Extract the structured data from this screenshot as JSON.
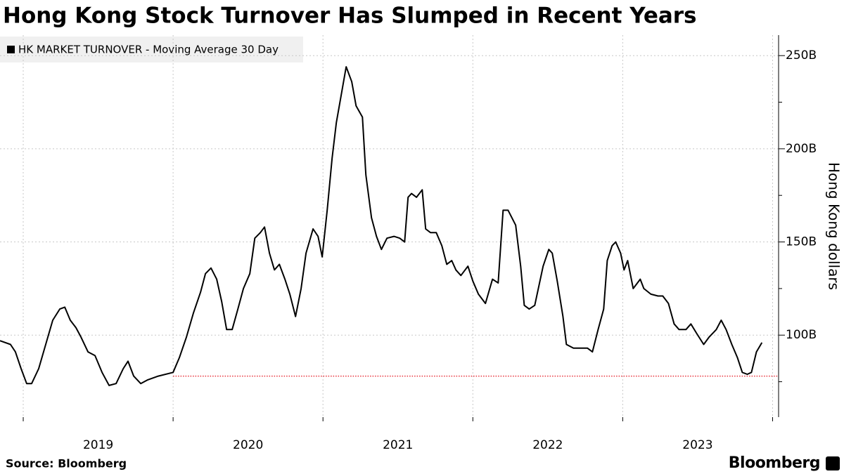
{
  "chart_data": {
    "type": "line",
    "title": "Hong Kong Stock Turnover Has Slumped in Recent Years",
    "y_axis_label": "Hong Kong dollars",
    "source": "Source: Bloomberg",
    "brand": "Bloomberg",
    "series": [
      {
        "name": "HK MARKET TURNOVER - Moving Average 30 Day",
        "color": "#000000",
        "x": [
          2018.845,
          2018.915,
          2018.948,
          2018.986,
          2019.023,
          2019.056,
          2019.103,
          2019.15,
          2019.197,
          2019.244,
          2019.277,
          2019.314,
          2019.352,
          2019.385,
          2019.432,
          2019.479,
          2019.526,
          2019.573,
          2019.62,
          2019.667,
          2019.699,
          2019.737,
          2019.784,
          2019.831,
          2019.901,
          2020.0,
          2020.042,
          2020.089,
          2020.136,
          2020.183,
          2020.216,
          2020.253,
          2020.291,
          2020.324,
          2020.357,
          2020.394,
          2020.432,
          2020.469,
          2020.512,
          2020.545,
          2020.582,
          2020.61,
          2020.643,
          2020.676,
          2020.709,
          2020.746,
          2020.779,
          2020.817,
          2020.854,
          2020.887,
          2020.934,
          2020.967,
          2020.995,
          2021.028,
          2021.061,
          2021.089,
          2021.122,
          2021.155,
          2021.192,
          2021.221,
          2021.263,
          2021.286,
          2021.324,
          2021.357,
          2021.39,
          2021.427,
          2021.474,
          2021.512,
          2021.545,
          2021.568,
          2021.591,
          2021.624,
          2021.662,
          2021.685,
          2021.718,
          2021.756,
          2021.793,
          2021.826,
          2021.859,
          2021.887,
          2021.92,
          2021.967,
          2022.0,
          2022.037,
          2022.084,
          2022.131,
          2022.169,
          2022.202,
          2022.235,
          2022.286,
          2022.319,
          2022.343,
          2022.376,
          2022.413,
          2022.437,
          2022.469,
          2022.507,
          2022.53,
          2022.563,
          2022.601,
          2022.624,
          2022.671,
          2022.718,
          2022.765,
          2022.798,
          2022.836,
          2022.873,
          2022.897,
          2022.929,
          2022.953,
          2022.986,
          2023.009,
          2023.033,
          2023.07,
          2023.117,
          2023.141,
          2023.188,
          2023.235,
          2023.267,
          2023.305,
          2023.343,
          2023.376,
          2023.422,
          2023.455,
          2023.493,
          2023.54,
          2023.577,
          2023.624,
          2023.657,
          2023.69,
          2023.728,
          2023.765,
          2023.798,
          2023.831,
          2023.859,
          2023.892,
          2023.929
        ],
        "values": [
          97,
          95,
          91,
          82,
          74,
          74,
          82,
          95,
          108,
          114,
          115,
          108,
          104,
          99,
          91,
          89,
          80,
          73,
          74,
          82,
          86,
          78,
          74,
          76,
          78,
          80,
          88,
          99,
          112,
          123,
          133,
          136,
          130,
          118,
          103,
          103,
          114,
          125,
          133,
          152,
          155,
          158,
          144,
          135,
          138,
          130,
          122,
          110,
          125,
          144,
          157,
          153,
          142,
          167,
          195,
          214,
          229,
          244,
          236,
          223,
          217,
          186,
          163,
          153,
          146,
          152,
          153,
          152,
          150,
          174,
          176,
          174,
          178,
          157,
          155,
          155,
          148,
          138,
          140,
          135,
          132,
          137,
          129,
          122,
          117,
          130,
          128,
          167,
          167,
          159,
          137,
          116,
          114,
          116,
          125,
          137,
          146,
          144,
          129,
          110,
          95,
          93,
          93,
          93,
          91,
          103,
          114,
          140,
          148,
          150,
          144,
          135,
          140,
          125,
          130,
          125,
          122,
          121,
          121,
          117,
          106,
          103,
          103,
          106,
          101,
          95,
          99,
          103,
          108,
          103,
          95,
          88,
          80,
          79,
          80,
          91,
          96
        ]
      }
    ],
    "reference_line": {
      "value": 78,
      "x_start": 2020,
      "color": "#e8303a"
    },
    "xlim": [
      2018.845,
      2024.04
    ],
    "xticks": [
      2019,
      2020,
      2021,
      2022,
      2023,
      2024
    ],
    "xlabels": [
      {
        "value": 2019.5,
        "label": "2019"
      },
      {
        "value": 2020.5,
        "label": "2020"
      },
      {
        "value": 2021.5,
        "label": "2021"
      },
      {
        "value": 2022.5,
        "label": "2022"
      },
      {
        "value": 2023.5,
        "label": "2023"
      }
    ],
    "ylim": [
      56,
      261
    ],
    "yticks": [
      {
        "value": 100,
        "label": "100B"
      },
      {
        "value": 150,
        "label": "150B"
      },
      {
        "value": 200,
        "label": "200B"
      },
      {
        "value": 250,
        "label": "250B"
      }
    ],
    "yminorticks": [
      75,
      125,
      175,
      225
    ],
    "grid": true,
    "legend": "upper left"
  }
}
